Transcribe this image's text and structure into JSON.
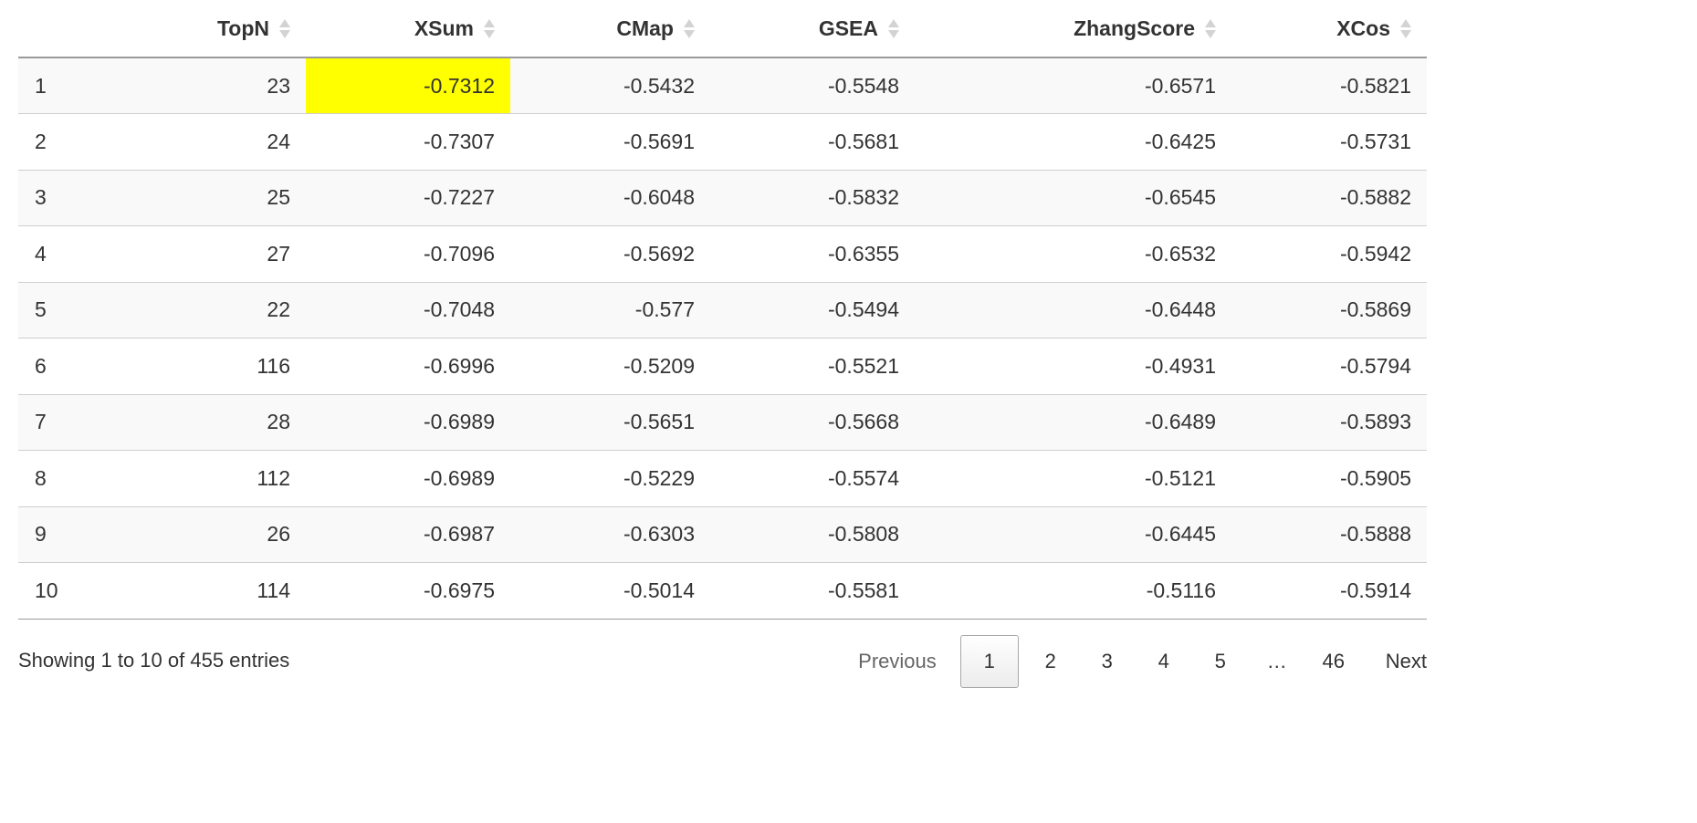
{
  "table": {
    "headers": [
      "",
      "TopN",
      "XSum",
      "CMap",
      "GSEA",
      "ZhangScore",
      "XCos"
    ],
    "rows": [
      [
        "1",
        "23",
        "-0.7312",
        "-0.5432",
        "-0.5548",
        "-0.6571",
        "-0.5821"
      ],
      [
        "2",
        "24",
        "-0.7307",
        "-0.5691",
        "-0.5681",
        "-0.6425",
        "-0.5731"
      ],
      [
        "3",
        "25",
        "-0.7227",
        "-0.6048",
        "-0.5832",
        "-0.6545",
        "-0.5882"
      ],
      [
        "4",
        "27",
        "-0.7096",
        "-0.5692",
        "-0.6355",
        "-0.6532",
        "-0.5942"
      ],
      [
        "5",
        "22",
        "-0.7048",
        "-0.577",
        "-0.5494",
        "-0.6448",
        "-0.5869"
      ],
      [
        "6",
        "116",
        "-0.6996",
        "-0.5209",
        "-0.5521",
        "-0.4931",
        "-0.5794"
      ],
      [
        "7",
        "28",
        "-0.6989",
        "-0.5651",
        "-0.5668",
        "-0.6489",
        "-0.5893"
      ],
      [
        "8",
        "112",
        "-0.6989",
        "-0.5229",
        "-0.5574",
        "-0.5121",
        "-0.5905"
      ],
      [
        "9",
        "26",
        "-0.6987",
        "-0.6303",
        "-0.5808",
        "-0.6445",
        "-0.5888"
      ],
      [
        "10",
        "114",
        "-0.6975",
        "-0.5014",
        "-0.5581",
        "-0.5116",
        "-0.5914"
      ]
    ],
    "highlight_color": "#ffff00",
    "stripe_color": "#f9f9f9"
  },
  "footer": {
    "info": "Showing 1 to 10 of 455 entries",
    "previous": "Previous",
    "pages": [
      "1",
      "2",
      "3",
      "4",
      "5",
      "…",
      "46"
    ],
    "current_page": "1",
    "next": "Next"
  }
}
